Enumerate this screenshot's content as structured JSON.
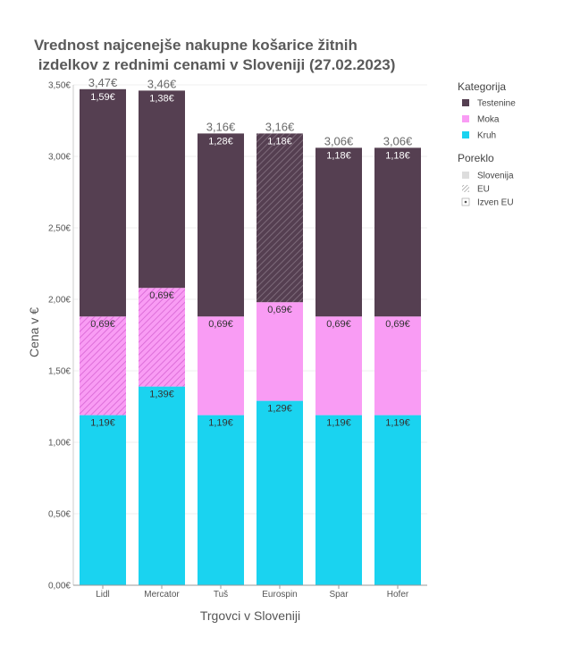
{
  "chart_data": {
    "type": "bar",
    "stacked": true,
    "title_lines": [
      "Vrednost najcenejše nakupne košarice žitnih",
      " izdelkov z rednimi cenami v Sloveniji (27.02.2023)"
    ],
    "xlabel": "Trgovci v Sloveniji",
    "ylabel": "Cena v €",
    "ylim": [
      0,
      3.5
    ],
    "yticks": [
      0,
      0.5,
      1.0,
      1.5,
      2.0,
      2.5,
      3.0,
      3.5
    ],
    "ytick_labels": [
      "0,00€",
      "0,50€",
      "1,00€",
      "1,50€",
      "2,00€",
      "2,50€",
      "3,00€",
      "3,50€"
    ],
    "grid": true,
    "legend_position": "right",
    "categories": [
      "Lidl",
      "Mercator",
      "Tuš",
      "Eurospin",
      "Spar",
      "Hofer"
    ],
    "series": [
      {
        "name": "Kruh",
        "color": "#1ad3f0",
        "values": [
          1.19,
          1.39,
          1.19,
          1.29,
          1.19,
          1.19
        ],
        "labels": [
          "1,19€",
          "1,39€",
          "1,19€",
          "1,29€",
          "1,19€",
          "1,19€"
        ],
        "origin": [
          "Slovenija",
          "Slovenija",
          "Slovenija",
          "Slovenija",
          "Slovenija",
          "Slovenija"
        ]
      },
      {
        "name": "Moka",
        "color": "#f99cf4",
        "values": [
          0.69,
          0.69,
          0.69,
          0.69,
          0.69,
          0.69
        ],
        "labels": [
          "0,69€",
          "0,69€",
          "0,69€",
          "0,69€",
          "0,69€",
          "0,69€"
        ],
        "origin": [
          "EU",
          "EU",
          "Slovenija",
          "Slovenija",
          "Slovenija",
          "Slovenija"
        ]
      },
      {
        "name": "Testenine",
        "color": "#553f51",
        "values": [
          1.59,
          1.38,
          1.28,
          1.18,
          1.18,
          1.18
        ],
        "labels": [
          "1,59€",
          "1,38€",
          "1,28€",
          "1,18€",
          "1,18€",
          "1,18€"
        ],
        "origin": [
          "Slovenija",
          "Slovenija",
          "Slovenija",
          "EU",
          "Slovenija",
          "Slovenija"
        ]
      }
    ],
    "totals": [
      3.47,
      3.46,
      3.16,
      3.16,
      3.06,
      3.06
    ],
    "total_labels": [
      "3,47€",
      "3,46€",
      "3,16€",
      "3,16€",
      "3,06€",
      "3,06€"
    ],
    "legend": {
      "category_title": "Kategorija",
      "category_items": [
        {
          "name": "Testenine",
          "color": "#553f51"
        },
        {
          "name": "Moka",
          "color": "#f99cf4"
        },
        {
          "name": "Kruh",
          "color": "#1ad3f0"
        }
      ],
      "origin_title": "Poreklo",
      "origin_items": [
        {
          "name": "Slovenija",
          "pattern": "solid"
        },
        {
          "name": "EU",
          "pattern": "stripes"
        },
        {
          "name": "Izven EU",
          "pattern": "dots"
        }
      ]
    }
  }
}
